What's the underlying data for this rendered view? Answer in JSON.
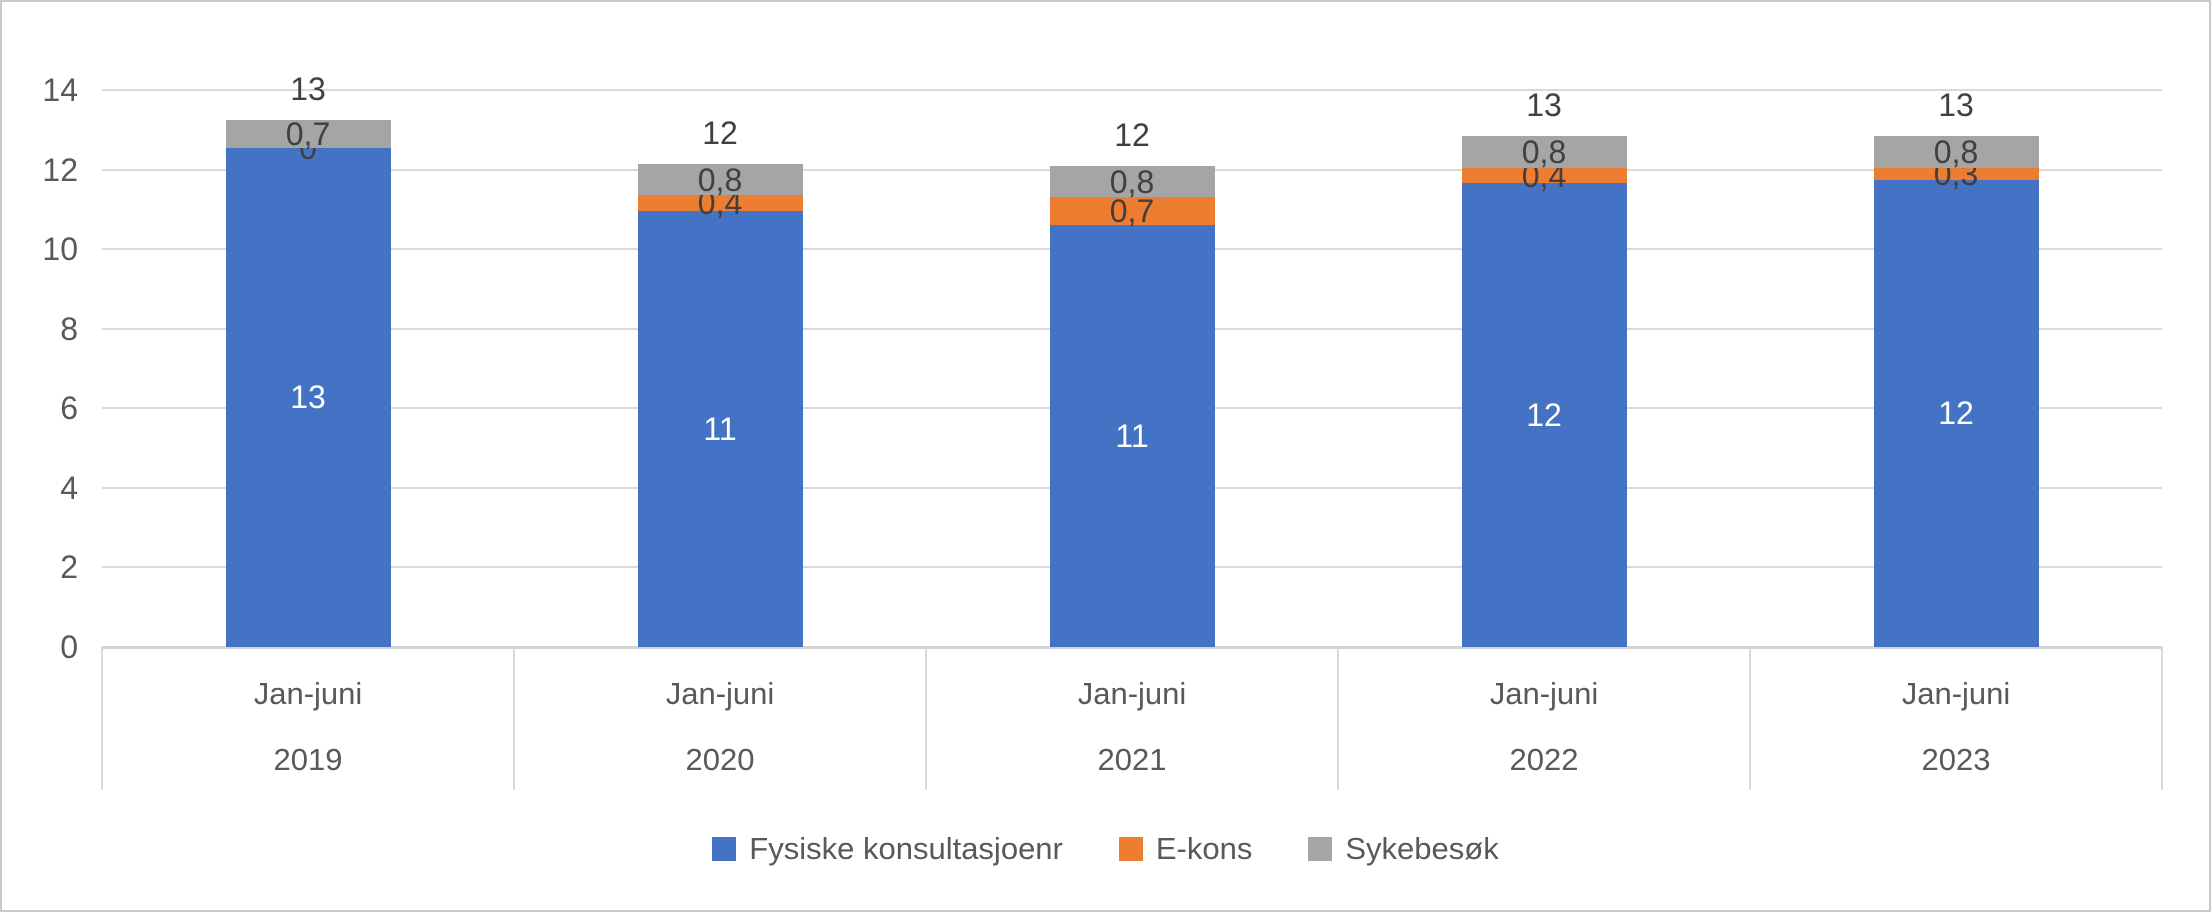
{
  "chart_data": {
    "type": "bar",
    "stacked": true,
    "title": "",
    "xlabel": "",
    "ylabel": "",
    "categories": [
      {
        "period": "Jan-juni",
        "year": "2019"
      },
      {
        "period": "Jan-juni",
        "year": "2020"
      },
      {
        "period": "Jan-juni",
        "year": "2021"
      },
      {
        "period": "Jan-juni",
        "year": "2022"
      },
      {
        "period": "Jan-juni",
        "year": "2023"
      }
    ],
    "series": [
      {
        "key": "fysiske-konsultasjoner",
        "name": "Fysiske konsultasjoenr",
        "color": "#4472C4",
        "label_color": "#ffffff",
        "values": [
          12.55,
          10.95,
          10.6,
          11.65,
          11.75
        ],
        "labels": [
          "13",
          "11",
          "11",
          "12",
          "12"
        ]
      },
      {
        "key": "e-kons",
        "name": "E-kons",
        "color": "#ED7D31",
        "label_color": "#404040",
        "values": [
          0,
          0.4,
          0.7,
          0.4,
          0.3
        ],
        "labels": [
          "0",
          "0,4",
          "0,7",
          "0,4",
          "0,3"
        ]
      },
      {
        "key": "sykebesok",
        "name": "Sykebesøk",
        "color": "#A5A5A5",
        "label_color": "#404040",
        "values": [
          0.7,
          0.8,
          0.8,
          0.8,
          0.8
        ],
        "labels": [
          "0,7",
          "0,8",
          "0,8",
          "0,8",
          "0,8"
        ]
      }
    ],
    "totals": [
      "13",
      "12",
      "12",
      "13",
      "13"
    ],
    "y_axis": {
      "min": 0,
      "max": 14,
      "step": 2,
      "ticks": [
        "0",
        "2",
        "4",
        "6",
        "8",
        "10",
        "12",
        "14"
      ]
    },
    "grid": true,
    "legend_position": "bottom"
  },
  "colors": {
    "grid_line": "#DADADA",
    "axis_line": "#D2D2D2",
    "tick_text": "#595959",
    "label_text": "#404040",
    "border": "#C9C9C9",
    "background": "#FFFFFF"
  }
}
